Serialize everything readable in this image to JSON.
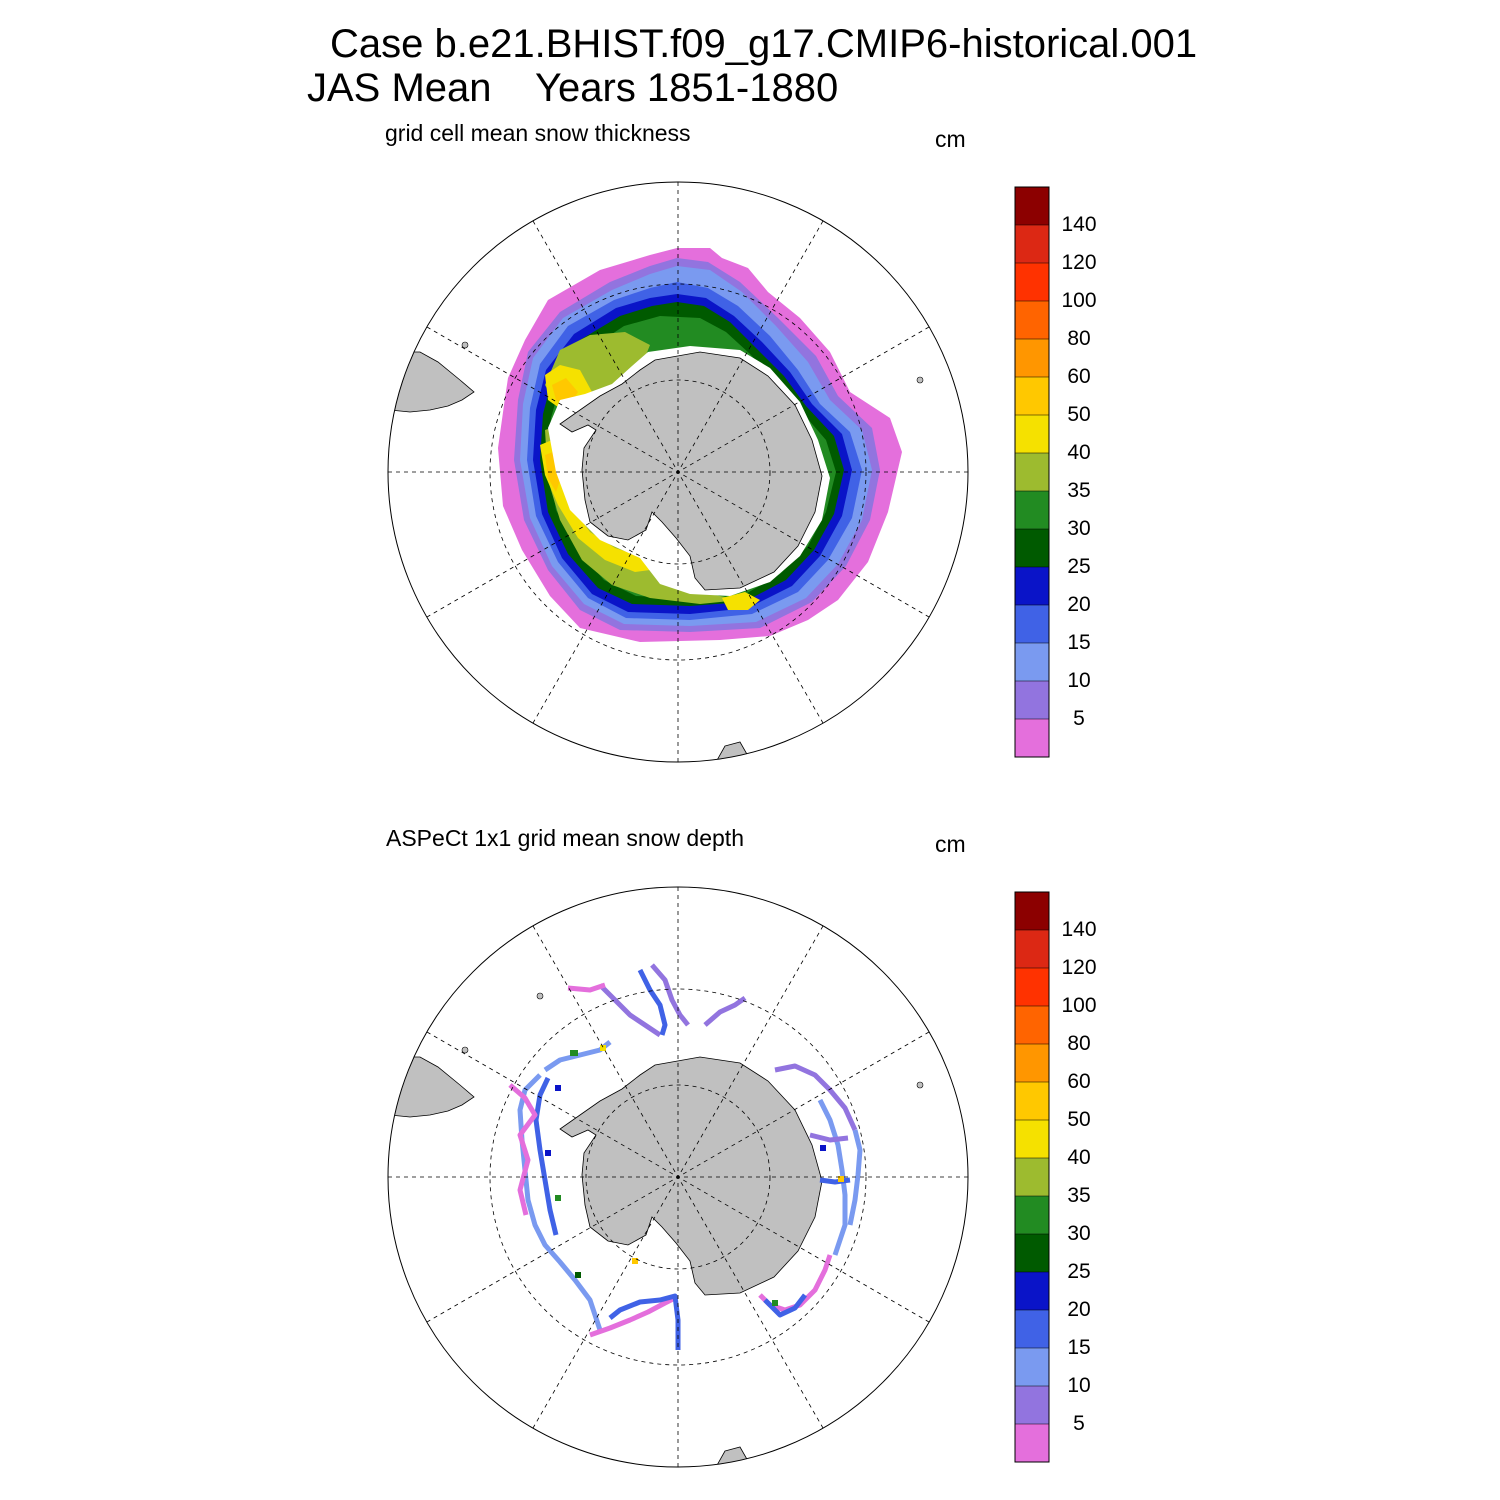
{
  "header": {
    "case_line": "Case b.e21.BHIST.f09_g17.CMIP6-historical.001",
    "season_label": "JAS Mean",
    "years_label": "Years 1851-1880"
  },
  "panels": [
    {
      "title": "grid cell mean snow thickness",
      "unit": "cm",
      "field": "model-snow-thickness"
    },
    {
      "title": "ASPeCt 1x1 grid mean snow depth",
      "unit": "cm",
      "field": "observed-snow-depth"
    }
  ],
  "colorbar": {
    "levels": [
      "5",
      "10",
      "15",
      "20",
      "25",
      "30",
      "35",
      "40",
      "50",
      "60",
      "80",
      "100",
      "120",
      "140"
    ],
    "colors": [
      "#e46fdc",
      "#9274df",
      "#7a9af0",
      "#4062e6",
      "#0a14c8",
      "#005a00",
      "#228b22",
      "#9dbb2f",
      "#f5e100",
      "#ffc800",
      "#ff9600",
      "#ff6400",
      "#ff3200",
      "#dc2814",
      "#8c0000"
    ]
  },
  "map": {
    "projection": "south-polar-stereographic",
    "land_color": "#c0c0c0",
    "gridlines": "dashed"
  }
}
